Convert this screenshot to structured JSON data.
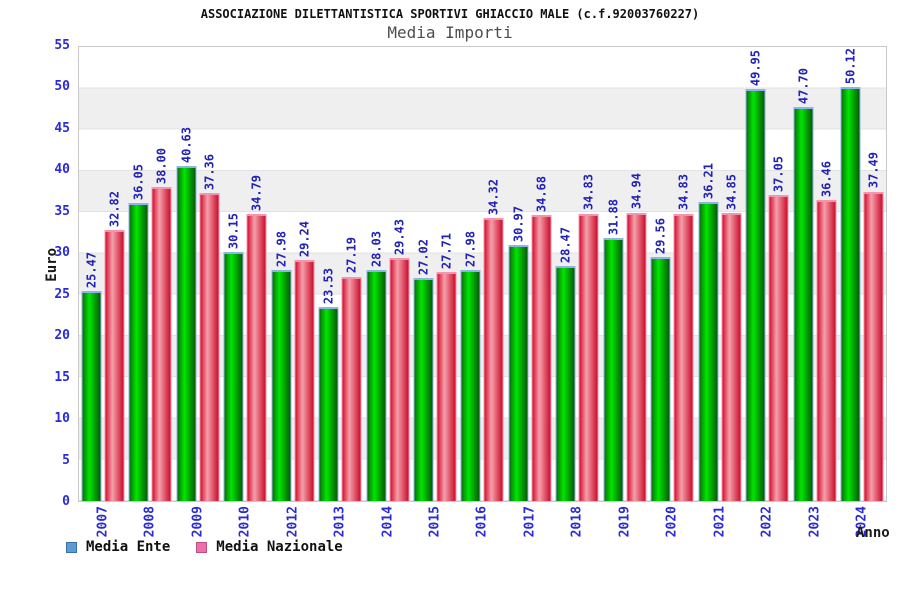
{
  "chart_data": {
    "type": "bar",
    "title": "ASSOCIAZIONE DILETTANTISTICA SPORTIVI GHIACCIO MALE (c.f.92003760227)",
    "subtitle": "Media Importi",
    "xlabel": "Anno",
    "ylabel": "Euro",
    "ylim": [
      0,
      55
    ],
    "ytick_step": 5,
    "grid": "horizontal-bands-alternating",
    "legend_position": "bottom-left",
    "value_label_format": "2-decimals-rotated-90ccw",
    "categories": [
      "2007",
      "2008",
      "2009",
      "2010",
      "2012",
      "2013",
      "2014",
      "2015",
      "2016",
      "2017",
      "2018",
      "2019",
      "2020",
      "2021",
      "2022",
      "2023",
      "2024"
    ],
    "series": [
      {
        "name": "Media Ente",
        "legend_fill": "#5c9bd5",
        "legend_border": "#3a6ea5",
        "bar_border": "#8fb3e8",
        "bar_gradient": [
          "#0a700a",
          "#00e600",
          "#085a08"
        ],
        "values": [
          25.47,
          36.05,
          40.63,
          30.15,
          27.98,
          23.53,
          28.03,
          27.02,
          27.98,
          30.97,
          28.47,
          31.88,
          29.56,
          36.21,
          49.95,
          47.7,
          50.12
        ]
      },
      {
        "name": "Media Nazionale",
        "legend_fill": "#ee6fa8",
        "legend_border": "#b85080",
        "bar_border": "#f494b0",
        "bar_gradient": [
          "#d51030",
          "#f4a0aa",
          "#cc0e2c"
        ],
        "values": [
          32.82,
          38.0,
          37.36,
          34.79,
          29.24,
          27.19,
          29.43,
          27.71,
          34.32,
          34.68,
          34.83,
          34.94,
          34.83,
          34.85,
          37.05,
          36.46,
          37.49
        ]
      }
    ],
    "colors": {
      "band_light": "#ffffff",
      "band_dark": "#efefef",
      "gridline": "#e2e2e2",
      "plot_border": "#c9c9c9",
      "tick_label": "#2b2bd5",
      "value_label": "#2222b4",
      "title": "#111111",
      "subtitle": "#4d4d4d"
    }
  }
}
